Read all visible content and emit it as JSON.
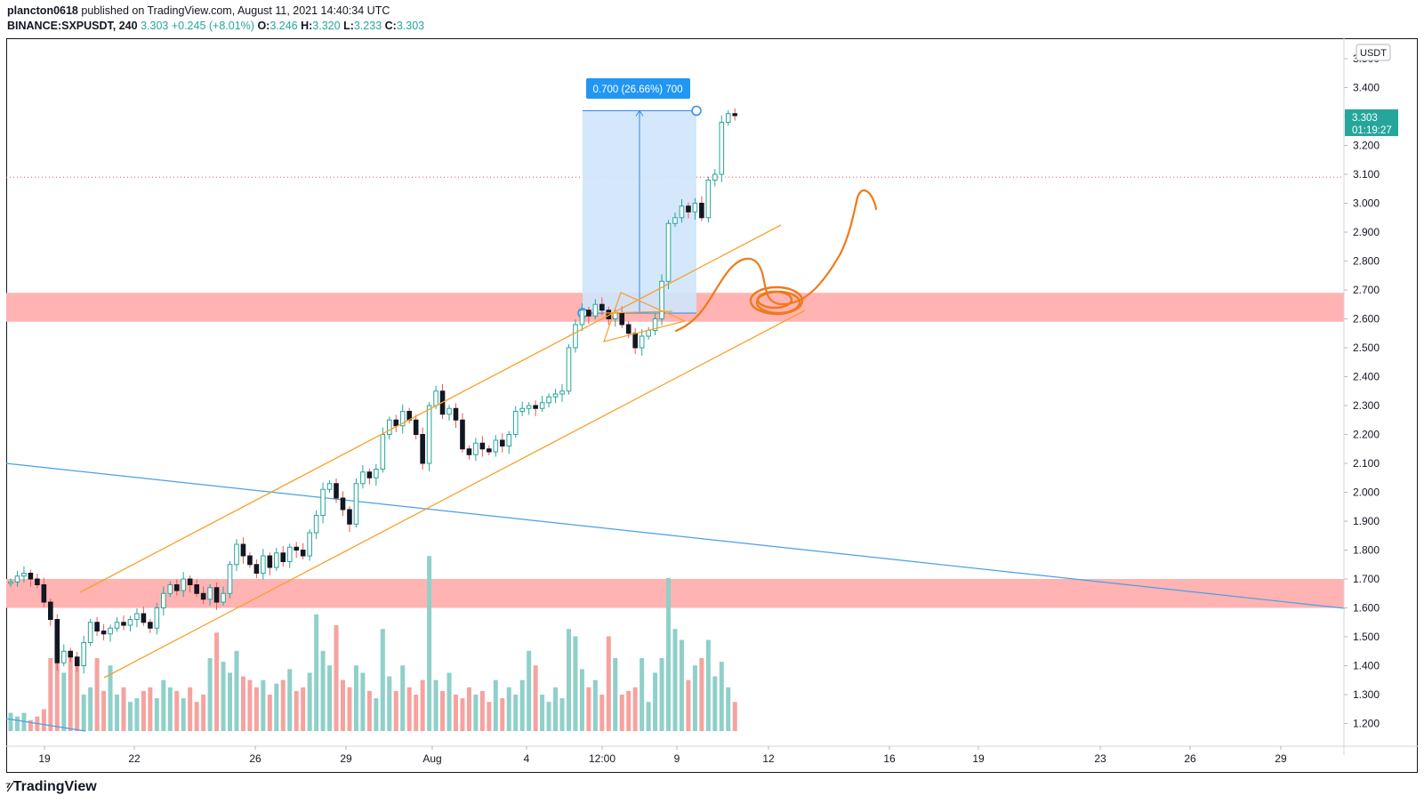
{
  "header": {
    "publisher": "plancton0618",
    "published_text": "published on TradingView.com, August 11, 2021 14:40:34 UTC",
    "symbol": "BINANCE:SXPUSDT",
    "interval": "240",
    "last": "3.303",
    "change": "+0.245 (+8.01%)",
    "o_label": "O:",
    "o": "3.246",
    "h_label": "H:",
    "h": "3.320",
    "l_label": "L:",
    "l": "3.233",
    "c_label": "C:",
    "c": "3.303"
  },
  "currency_badge": "USDT",
  "price_label": {
    "price": "3.303",
    "countdown": "01:19:27"
  },
  "measure_label": "0.700 (26.66%) 700",
  "footer": {
    "brand": "TradingView"
  },
  "colors": {
    "up": "#26a69a",
    "down": "#ef5350",
    "zone": "#ffb3b3",
    "channel": "#f7a02a",
    "trendline": "#4a9fe8",
    "measure_fill": "#cfe4fb",
    "measure_line": "#2a8ef0",
    "label_bg": "#2196f3",
    "dotted": "#ef5350"
  },
  "chart_data": {
    "type": "candlestick",
    "symbol": "BINANCE:SXPUSDT",
    "timeframe": "240",
    "x_tick_labels": [
      "19",
      "22",
      "26",
      "29",
      "Aug",
      "4",
      "12:00",
      "9",
      "12",
      "16",
      "19",
      "23",
      "26",
      "29"
    ],
    "y_tick_labels": [
      "3.500",
      "3.400",
      "3.300",
      "3.200",
      "3.100",
      "3.000",
      "2.900",
      "2.800",
      "2.700",
      "2.600",
      "2.500",
      "2.400",
      "2.300",
      "2.200",
      "2.100",
      "2.000",
      "1.900",
      "1.800",
      "1.700",
      "1.600",
      "1.500",
      "1.400",
      "1.300",
      "1.200"
    ],
    "ylim": [
      1.17,
      3.55
    ],
    "zones": [
      {
        "from": 2.59,
        "to": 2.69
      },
      {
        "from": 1.6,
        "to": 1.7
      }
    ],
    "dotted_level": 3.09,
    "measurement": {
      "from": 2.62,
      "to": 3.32,
      "change": 0.7
    },
    "close_series_approx": [
      1.69,
      1.71,
      1.72,
      1.7,
      1.68,
      1.62,
      1.56,
      1.41,
      1.45,
      1.43,
      1.4,
      1.48,
      1.55,
      1.52,
      1.51,
      1.53,
      1.55,
      1.54,
      1.56,
      1.58,
      1.55,
      1.53,
      1.6,
      1.65,
      1.68,
      1.66,
      1.7,
      1.68,
      1.65,
      1.63,
      1.67,
      1.62,
      1.65,
      1.75,
      1.82,
      1.78,
      1.75,
      1.72,
      1.78,
      1.74,
      1.79,
      1.76,
      1.81,
      1.8,
      1.78,
      1.86,
      1.92,
      2.01,
      2.03,
      1.98,
      1.94,
      1.89,
      2.03,
      2.07,
      2.05,
      2.08,
      2.2,
      2.25,
      2.23,
      2.28,
      2.25,
      2.2,
      2.1,
      2.3,
      2.35,
      2.27,
      2.29,
      2.25,
      2.15,
      2.13,
      2.17,
      2.15,
      2.14,
      2.18,
      2.16,
      2.2,
      2.28,
      2.29,
      2.3,
      2.29,
      2.31,
      2.33,
      2.34,
      2.35,
      2.5,
      2.58,
      2.63,
      2.61,
      2.65,
      2.63,
      2.6,
      2.62,
      2.58,
      2.55,
      2.5,
      2.54,
      2.56,
      2.6,
      2.73,
      2.93,
      2.95,
      2.99,
      2.97,
      3.0,
      2.95,
      3.08,
      3.1,
      3.28,
      3.31,
      3.303
    ],
    "volume_approx": [
      5,
      4,
      5,
      3,
      4,
      6,
      20,
      25,
      16,
      22,
      18,
      10,
      12,
      20,
      11,
      18,
      10,
      12,
      8,
      9,
      11,
      12,
      9,
      14,
      12,
      11,
      9,
      12,
      8,
      10,
      20,
      27,
      19,
      16,
      22,
      15,
      14,
      12,
      14,
      10,
      13,
      14,
      17,
      11,
      12,
      16,
      32,
      22,
      18,
      29,
      14,
      12,
      18,
      16,
      11,
      9,
      28,
      15,
      11,
      18,
      12,
      10,
      14,
      48,
      14,
      11,
      16,
      10,
      9,
      12,
      10,
      11,
      8,
      14,
      9,
      12,
      10,
      14,
      22,
      18,
      10,
      8,
      12,
      9,
      28,
      26,
      17,
      12,
      14,
      10,
      26,
      20,
      10,
      11,
      12,
      20,
      8,
      16,
      20,
      42,
      28,
      25,
      14,
      18,
      20,
      25,
      15,
      19,
      12,
      8
    ],
    "annotations": [
      "ascending channel",
      "descending trendline",
      "triangle",
      "projected path"
    ]
  }
}
